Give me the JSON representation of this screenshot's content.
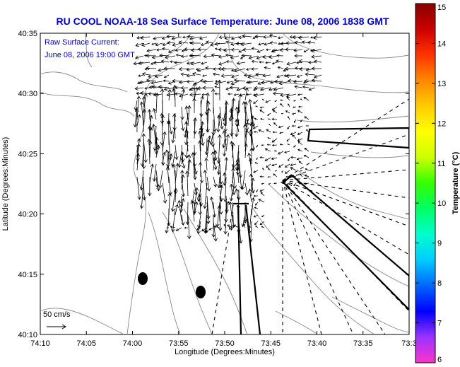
{
  "title": "RU COOL  NOAA-18  Sea Surface Temperature:  June 08, 2006 1838 GMT",
  "annotation": {
    "line1": "Raw Surface Current:",
    "line2": "June 08, 2006 19:00 GMT"
  },
  "axes": {
    "xlabel": "Longitude (Degrees:Minutes)",
    "ylabel": "Latitude (Degrees:Minutes)",
    "xticks": [
      "74:10",
      "74:05",
      "74:00",
      "73:55",
      "73:50",
      "73:45",
      "73:40",
      "73:35",
      "73:3"
    ],
    "yticks": [
      "40:35",
      "40:30",
      "40:25",
      "40:20",
      "40:15",
      "40:10"
    ]
  },
  "colorbar": {
    "label": "Temperature (°C)",
    "ticks": [
      "15",
      "14",
      "13",
      "12",
      "11",
      "10",
      "9",
      "8",
      "7",
      "6"
    ],
    "colors": [
      "#ff33cc",
      "#9933ff",
      "#0000ff",
      "#0066ff",
      "#00ccff",
      "#00ffcc",
      "#00ff66",
      "#33ff00",
      "#ccff00",
      "#ffff00",
      "#ffcc00",
      "#ff8800",
      "#ff3300",
      "#cc0000",
      "#880000"
    ]
  },
  "scale_bar": {
    "label": "50 cm/s"
  },
  "chart_data": {
    "type": "map",
    "title": "RU COOL  NOAA-18  Sea Surface Temperature:  June 08, 2006 1838 GMT",
    "xlabel": "Longitude (Degrees:Minutes)",
    "ylabel": "Latitude (Degrees:Minutes)",
    "xlim": [
      "74:10",
      "73:3"
    ],
    "ylim": [
      "40:10",
      "40:35"
    ],
    "colorbar_range": [
      6,
      15
    ],
    "grid": false
  }
}
